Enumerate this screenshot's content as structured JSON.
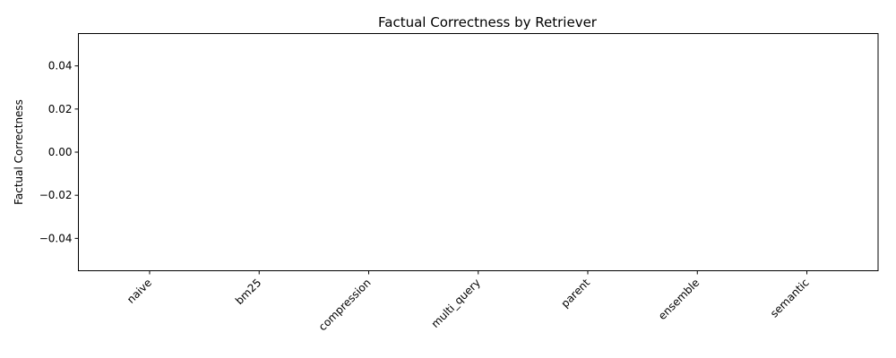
{
  "chart_data": {
    "type": "bar",
    "title": "Factual Correctness by Retriever",
    "xlabel": "",
    "ylabel": "Factual Correctness",
    "categories": [
      "naive",
      "bm25",
      "compression",
      "multi_query",
      "parent",
      "ensemble",
      "semantic"
    ],
    "values": [
      0,
      0,
      0,
      0,
      0,
      0,
      0
    ],
    "ylim": [
      -0.055,
      0.055
    ],
    "yticks": [
      -0.04,
      -0.02,
      0.0,
      0.02,
      0.04
    ],
    "ytick_labels": [
      "−0.04",
      "−0.02",
      "0.00",
      "0.02",
      "0.04"
    ],
    "grid": false,
    "bar_color": "#1f77b4"
  }
}
